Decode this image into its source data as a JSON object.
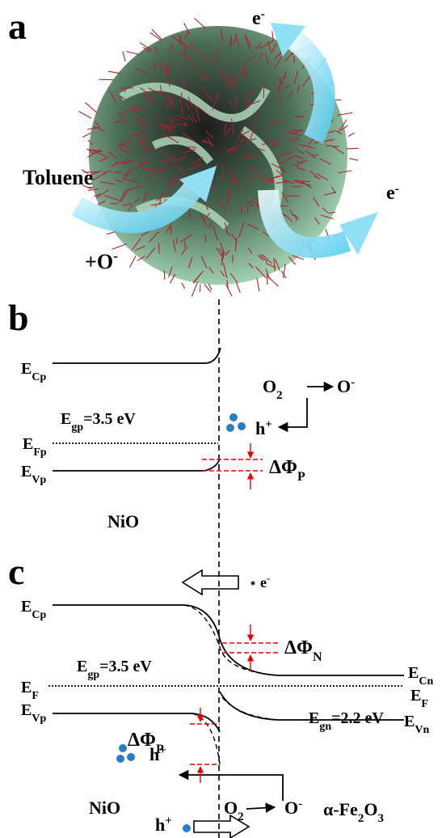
{
  "panels": {
    "a": {
      "label": "a",
      "texts": [
        {
          "parts": [
            "e",
            {
              "sup": "-"
            }
          ]
        },
        {
          "parts": [
            "Toluene"
          ]
        },
        {
          "parts": [
            "+O",
            {
              "sup": "-"
            }
          ]
        },
        {
          "parts": [
            "e",
            {
              "sup": "-"
            }
          ]
        }
      ]
    },
    "b": {
      "label": "b",
      "texts": [
        {
          "parts": [
            "E",
            {
              "sub": "Cp"
            }
          ]
        },
        {
          "parts": [
            "E",
            {
              "sub": "gp"
            },
            "=3.5 eV"
          ]
        },
        {
          "parts": [
            "E",
            {
              "sub": "Fp"
            }
          ]
        },
        {
          "parts": [
            "E",
            {
              "sub": "Vp"
            }
          ]
        },
        {
          "parts": [
            "O",
            {
              "sub": "2"
            }
          ]
        },
        {
          "parts": [
            "O",
            {
              "sup": "-"
            }
          ]
        },
        {
          "parts": [
            "h",
            {
              "sup": "+"
            }
          ]
        },
        {
          "parts": [
            "ΔΦ",
            {
              "sub": "P"
            }
          ]
        },
        {
          "parts": [
            "NiO"
          ]
        }
      ]
    },
    "c": {
      "label": "c",
      "texts": [
        {
          "parts": [
            "e",
            {
              "sup": "-"
            }
          ]
        },
        {
          "parts": [
            "E",
            {
              "sub": "Cp"
            }
          ]
        },
        {
          "parts": [
            "ΔΦ",
            {
              "sub": "N"
            }
          ]
        },
        {
          "parts": [
            "E",
            {
              "sub": "gp"
            },
            "=3.5 eV"
          ]
        },
        {
          "parts": [
            "E",
            {
              "sub": "Cn"
            }
          ]
        },
        {
          "parts": [
            "E",
            {
              "sub": "F"
            }
          ]
        },
        {
          "parts": [
            "E",
            {
              "sub": "F"
            }
          ]
        },
        {
          "parts": [
            "E",
            {
              "sub": "Vp"
            }
          ]
        },
        {
          "parts": [
            "E",
            {
              "sub": "gn"
            },
            "=2.2 eV"
          ]
        },
        {
          "parts": [
            "E",
            {
              "sub": "Vn"
            }
          ]
        },
        {
          "parts": [
            "ΔΦ",
            {
              "sub": "P"
            }
          ]
        },
        {
          "parts": [
            "h",
            {
              "sup": "+"
            }
          ]
        },
        {
          "parts": [
            "O",
            {
              "sub": "2"
            }
          ]
        },
        {
          "parts": [
            "O",
            {
              "sup": "-"
            }
          ]
        },
        {
          "parts": [
            "NiO"
          ]
        },
        {
          "parts": [
            "α-Fe",
            {
              "sub": "2"
            },
            "O",
            {
              "sub": "3"
            }
          ]
        },
        {
          "parts": [
            "h",
            {
              "sup": "+"
            }
          ]
        }
      ]
    }
  }
}
